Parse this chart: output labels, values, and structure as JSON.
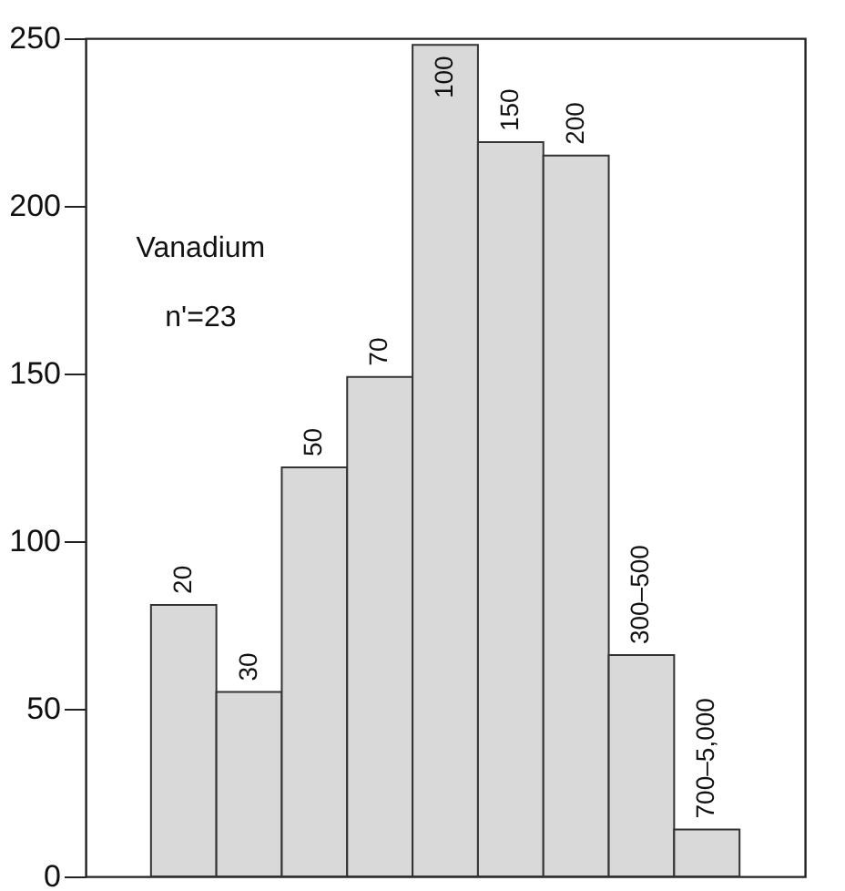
{
  "chart_data": {
    "type": "bar",
    "categories": [
      "20",
      "30",
      "50",
      "70",
      "100",
      "150",
      "200",
      "300–500",
      "700–5,000"
    ],
    "values": [
      81,
      55,
      122,
      149,
      248,
      219,
      215,
      66,
      14
    ],
    "color": "#d9d9d9",
    "ylim": [
      0,
      250
    ],
    "yticks": [
      0,
      50,
      100,
      150,
      200,
      250
    ],
    "tick_labels": "y",
    "grid": false,
    "annotations": [
      "Vanadium",
      "n'=23"
    ]
  }
}
